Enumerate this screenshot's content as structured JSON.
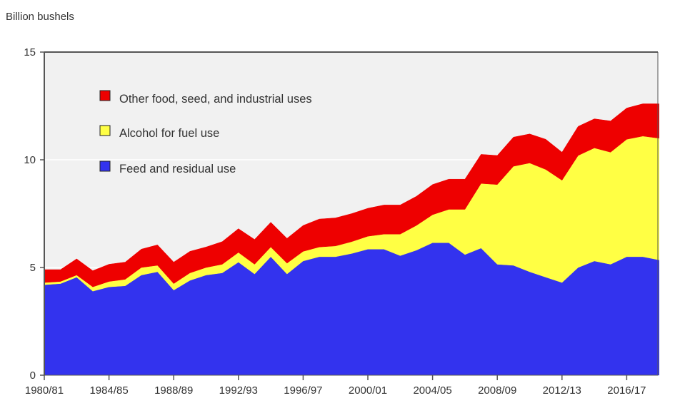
{
  "chart_data": {
    "type": "area",
    "stacked": true,
    "title": "",
    "ylabel": "Billion bushels",
    "xlabel": "",
    "ylim": [
      0,
      15
    ],
    "yticks": [
      0,
      5,
      10,
      15
    ],
    "grid": true,
    "legend_position": "top-left",
    "x": [
      "1980/81",
      "1981/82",
      "1982/83",
      "1983/84",
      "1984/85",
      "1985/86",
      "1986/87",
      "1987/88",
      "1988/89",
      "1989/90",
      "1990/91",
      "1991/92",
      "1992/93",
      "1993/94",
      "1994/95",
      "1995/96",
      "1996/97",
      "1997/98",
      "1998/99",
      "1999/00",
      "2000/01",
      "2001/02",
      "2002/03",
      "2003/04",
      "2004/05",
      "2005/06",
      "2006/07",
      "2007/08",
      "2008/09",
      "2009/10",
      "2010/11",
      "2011/12",
      "2012/13",
      "2013/14",
      "2014/15",
      "2015/16",
      "2016/17",
      "2017/18",
      "2018/19"
    ],
    "xtick_labels": [
      "1980/81",
      "1984/85",
      "1988/89",
      "1992/93",
      "1996/97",
      "2000/01",
      "2004/05",
      "2008/09",
      "2012/13",
      "2016/17"
    ],
    "series": [
      {
        "name": "Feed and residual use",
        "color": "#3333ee",
        "values": [
          4.2,
          4.25,
          4.55,
          3.9,
          4.1,
          4.15,
          4.65,
          4.8,
          3.95,
          4.4,
          4.65,
          4.75,
          5.25,
          4.7,
          5.5,
          4.7,
          5.3,
          5.5,
          5.5,
          5.65,
          5.85,
          5.85,
          5.55,
          5.8,
          6.15,
          6.15,
          5.6,
          5.9,
          5.15,
          5.1,
          4.8,
          4.55,
          4.3,
          5.0,
          5.3,
          5.15,
          5.5,
          5.5,
          5.35
        ]
      },
      {
        "name": "Alcohol for fuel use",
        "color": "#ffff44",
        "values": [
          0.1,
          0.1,
          0.1,
          0.2,
          0.25,
          0.3,
          0.35,
          0.3,
          0.3,
          0.35,
          0.35,
          0.4,
          0.45,
          0.45,
          0.45,
          0.5,
          0.45,
          0.45,
          0.5,
          0.55,
          0.6,
          0.7,
          1.0,
          1.15,
          1.3,
          1.55,
          2.1,
          3.0,
          3.7,
          4.6,
          5.05,
          5.0,
          4.75,
          5.2,
          5.25,
          5.2,
          5.45,
          5.6,
          5.65
        ]
      },
      {
        "name": "Other food, seed, and industrial uses",
        "color": "#ee0000",
        "values": [
          0.6,
          0.55,
          0.75,
          0.75,
          0.8,
          0.8,
          0.85,
          0.95,
          1.0,
          1.0,
          0.95,
          1.05,
          1.1,
          1.15,
          1.15,
          1.15,
          1.2,
          1.3,
          1.3,
          1.3,
          1.3,
          1.35,
          1.35,
          1.35,
          1.4,
          1.4,
          1.4,
          1.35,
          1.35,
          1.35,
          1.35,
          1.4,
          1.3,
          1.35,
          1.35,
          1.45,
          1.45,
          1.5,
          1.6
        ]
      }
    ]
  },
  "legend": {
    "items": [
      {
        "label": "Other food, seed, and industrial uses",
        "color": "#ee0000"
      },
      {
        "label": "Alcohol for fuel use",
        "color": "#ffff44"
      },
      {
        "label": "Feed and residual use",
        "color": "#3333ee"
      }
    ]
  },
  "colors": {
    "plot_background": "#f1f1f1",
    "axis": "#555555",
    "gridline": "#ffffff"
  }
}
